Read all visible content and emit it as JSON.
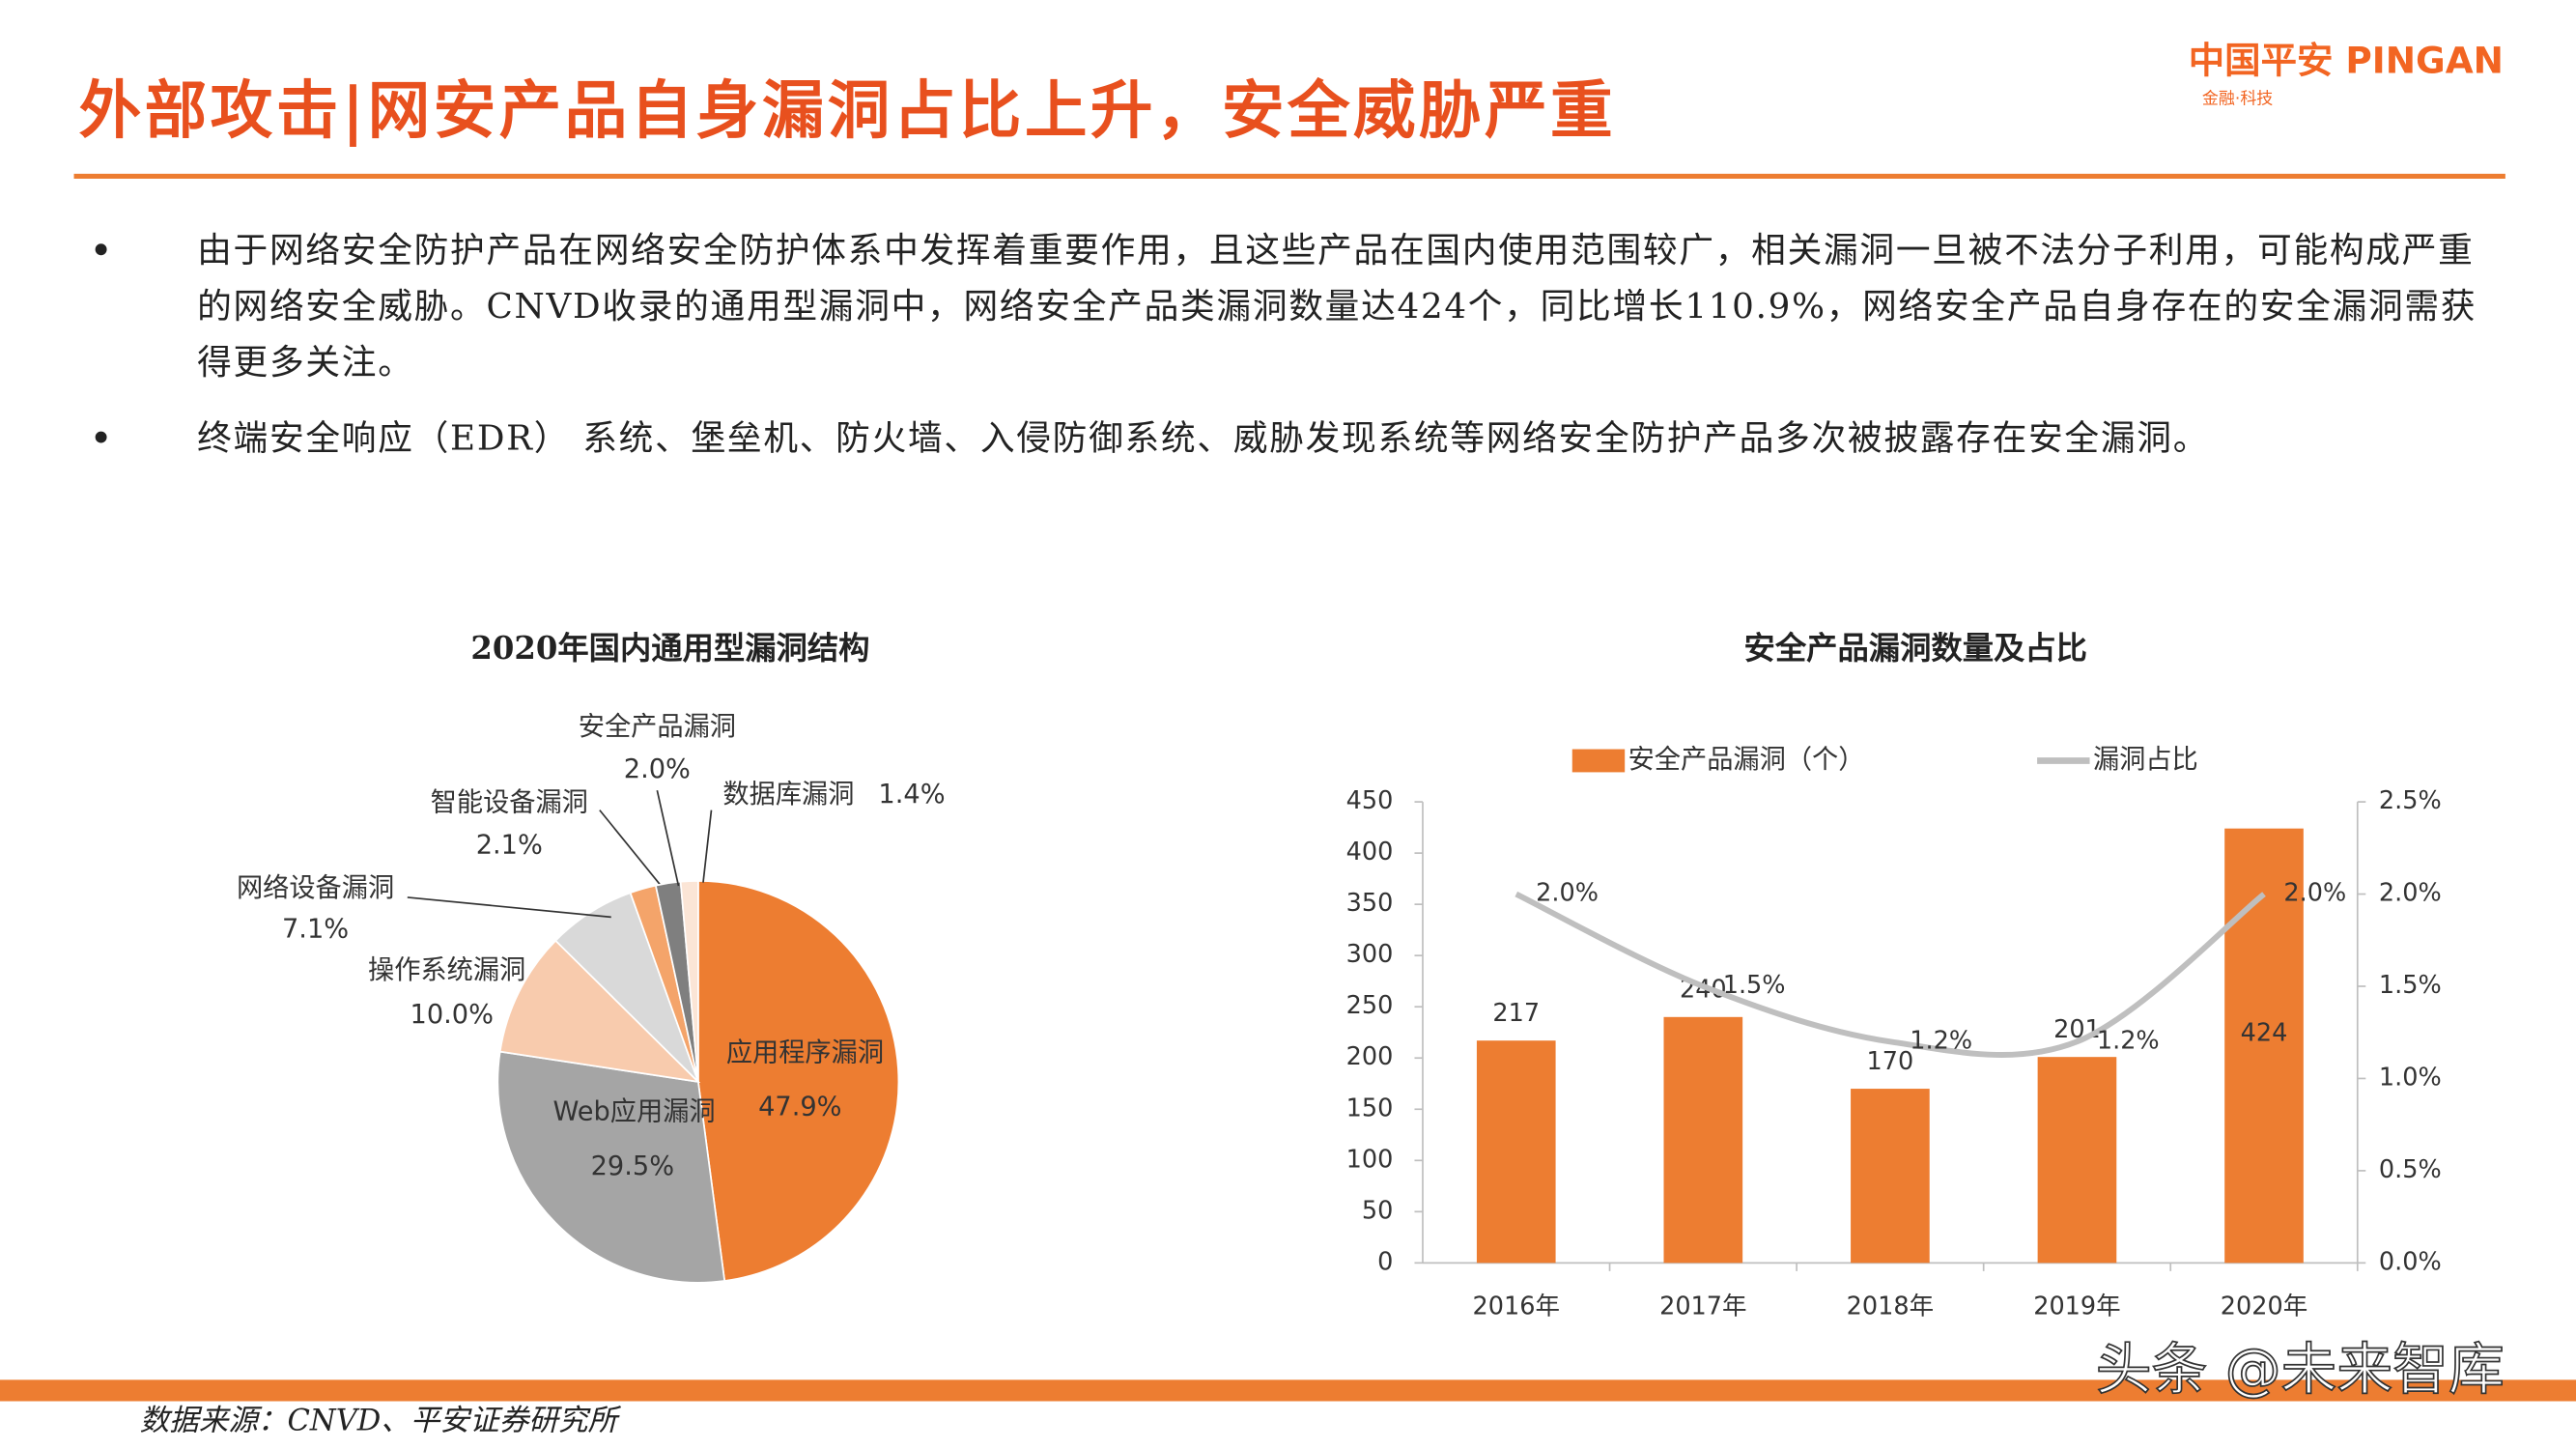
{
  "header": {
    "title": "外部攻击|网安产品自身漏洞占比上升，安全威胁严重",
    "logo": "中国平安 PINGAN",
    "logo_tagline": "金融·科技"
  },
  "bullets": [
    "由于网络安全防护产品在网络安全防护体系中发挥着重要作用，且这些产品在国内使用范围较广，相关漏洞一旦被不法分子利用，可能构成严重的网络安全威胁。CNVD收录的通用型漏洞中，网络安全产品类漏洞数量达424个，同比增长110.9%，网络安全产品自身存在的安全漏洞需获得更多关注。",
    "终端安全响应（EDR） 系统、堡垒机、防火墙、入侵防御系统、威胁发现系统等网络安全防护产品多次被披露存在安全漏洞。"
  ],
  "chart_data": [
    {
      "type": "pie",
      "title": "2020年国内通用型漏洞结构",
      "categories": [
        "应用程序漏洞",
        "Web应用漏洞",
        "操作系统漏洞",
        "网络设备漏洞",
        "智能设备漏洞",
        "安全产品漏洞",
        "数据库漏洞"
      ],
      "values": [
        47.9,
        29.5,
        10.0,
        7.1,
        2.1,
        2.0,
        1.4
      ],
      "value_labels": [
        "47.9%",
        "29.5%",
        "10.0%",
        "7.1%",
        "2.1%",
        "2.0%",
        "1.4%"
      ],
      "colors": [
        "#ED7D31",
        "#A5A5A5",
        "#F8CBAD",
        "#D9D9D9",
        "#F4A46A",
        "#7F7F7F",
        "#FBE5D6"
      ]
    },
    {
      "type": "bar",
      "title": "安全产品漏洞数量及占比",
      "categories": [
        "2016年",
        "2017年",
        "2018年",
        "2019年",
        "2020年"
      ],
      "series": [
        {
          "name": "安全产品漏洞（个）",
          "type": "bar",
          "color": "#ED7D31",
          "values": [
            217,
            240,
            170,
            201,
            424
          ]
        },
        {
          "name": "漏洞占比",
          "type": "line",
          "axis": "y2",
          "color": "#BFBFBF",
          "values": [
            2.0,
            1.5,
            1.2,
            1.2,
            2.0
          ],
          "value_labels": [
            "2.0%",
            "1.5%",
            "1.2%",
            "1.2%",
            "2.0%"
          ]
        }
      ],
      "ylim": [
        0,
        450
      ],
      "yticks": [
        0,
        50,
        100,
        150,
        200,
        250,
        300,
        350,
        400,
        450
      ],
      "y2lim": [
        0,
        2.5
      ],
      "y2ticks": [
        {
          "value": 0,
          "label": "0.0%"
        },
        {
          "value": 0.5,
          "label": "0.5%"
        },
        {
          "value": 1.0,
          "label": "1.0%"
        },
        {
          "value": 1.5,
          "label": "1.5%"
        },
        {
          "value": 2.0,
          "label": "2.0%"
        },
        {
          "value": 2.5,
          "label": "2.5%"
        }
      ],
      "legend": "top"
    }
  ],
  "source": "数据来源：CNVD、平安证券研究所",
  "watermark": "头条 @未来智库"
}
